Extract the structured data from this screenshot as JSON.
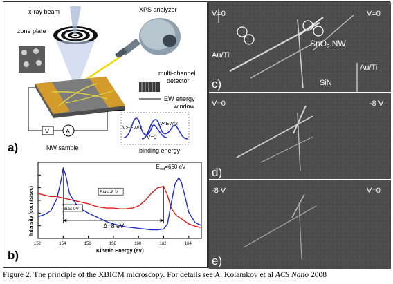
{
  "figure": {
    "caption_prefix": "Figure 2. The principle of the XBICM microscopy. For details see A. Kolamkov et al ",
    "caption_journal": "ACS Nano",
    "caption_year": " 2008"
  },
  "panel_a": {
    "label": "a)",
    "xray_beam": "x-ray beam",
    "zone_plate": "zone plate",
    "xps_analyzer": "XPS analyzer",
    "multichannel": "multi-channel",
    "detector": "detector",
    "ew_energy": "EW energy",
    "window": "window",
    "binding_energy": "binding energy",
    "v_minus": "V>-EW/2",
    "v_zero": "V=0",
    "v_plus": "V<EW/2",
    "nw_sample": "NW sample",
    "meter_v": "V",
    "meter_a": "A"
  },
  "panel_b": {
    "label": "b)",
    "energy_label": "E",
    "energy_sub": "ext",
    "energy_value": "=660 eV",
    "ylabel": "Intensity (counts/sec)",
    "xlabel": "Kinetic Energy (eV)",
    "bias_neg": "Bias -8 V",
    "bias_zero": "Bias 0V",
    "delta": "Δ=8 eV",
    "xticks": [
      "152",
      "154",
      "156",
      "158",
      "160",
      "162",
      "164"
    ],
    "colors": {
      "zero_bias": "#1f2bd6",
      "neg_bias": "#e31a1a"
    }
  },
  "panel_c": {
    "label": "c)",
    "v_left": "V=0",
    "v_right": "V=0",
    "au_left": "Au/Ti",
    "au_right": "Au/Ti",
    "sno2": "SnO",
    "sno2_sub": "2",
    "sno2_suffix": " NW",
    "sin": "SiN"
  },
  "panel_d": {
    "label": "d)",
    "v_left": "V=0",
    "v_right": "-8 V"
  },
  "panel_e": {
    "label": "e)",
    "v_left": "-8 V",
    "v_right": "V=0"
  },
  "chart_data": {
    "type": "line",
    "title": "",
    "xlabel": "Kinetic Energy (eV)",
    "ylabel": "Intensity (counts/sec)",
    "xlim": [
      152,
      165
    ],
    "series": [
      {
        "name": "Bias 0V",
        "x": [
          152.0,
          152.5,
          153.0,
          153.5,
          153.8,
          154.0,
          154.2,
          154.5,
          155.0,
          155.5,
          156.0,
          156.5,
          157.0,
          157.5,
          158.0,
          158.5,
          159.0,
          159.5,
          160.0,
          160.5,
          161.0,
          161.5,
          162.0,
          162.3,
          162.6,
          162.9,
          163.2,
          163.4,
          163.7,
          164.0,
          164.5,
          165.0
        ],
        "values": [
          0.3,
          0.33,
          0.38,
          0.55,
          0.78,
          0.97,
          0.88,
          0.62,
          0.48,
          0.4,
          0.35,
          0.31,
          0.27,
          0.23,
          0.2,
          0.18,
          0.16,
          0.15,
          0.14,
          0.13,
          0.12,
          0.12,
          0.13,
          0.2,
          0.48,
          0.75,
          0.84,
          0.78,
          0.58,
          0.36,
          0.22,
          0.18
        ]
      },
      {
        "name": "Bias -8 V",
        "x": [
          152.0,
          152.5,
          153.0,
          153.5,
          154.0,
          154.5,
          155.0,
          155.5,
          156.0,
          156.5,
          157.0,
          157.5,
          158.0,
          158.5,
          159.0,
          159.5,
          160.0,
          160.5,
          161.0,
          161.5,
          162.0,
          162.3,
          162.6,
          163.0,
          163.5,
          164.0,
          164.5,
          165.0
        ],
        "values": [
          0.62,
          0.6,
          0.58,
          0.58,
          0.56,
          0.54,
          0.52,
          0.5,
          0.48,
          0.45,
          0.43,
          0.42,
          0.42,
          0.41,
          0.41,
          0.42,
          0.45,
          0.52,
          0.62,
          0.7,
          0.72,
          0.6,
          0.42,
          0.32,
          0.26,
          0.2,
          0.17,
          0.15
        ]
      }
    ]
  }
}
